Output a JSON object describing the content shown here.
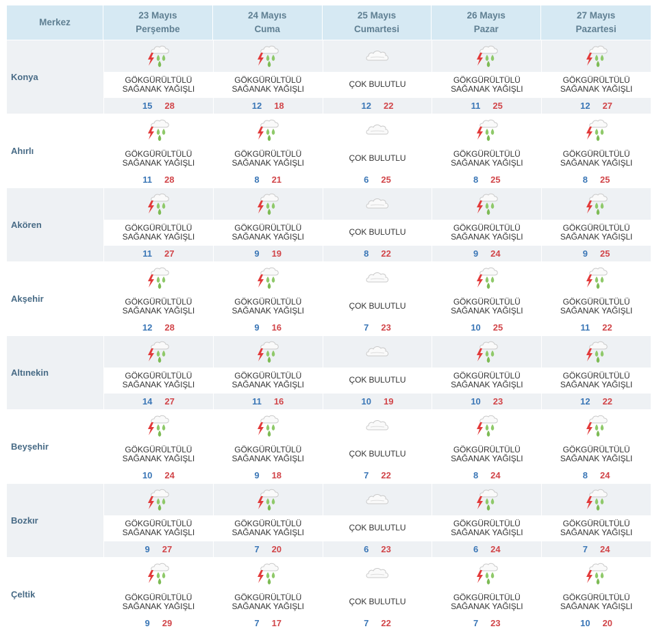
{
  "header": {
    "label": "Merkez"
  },
  "days": [
    {
      "date": "23 Mayıs",
      "weekday": "Perşembe"
    },
    {
      "date": "24 Mayıs",
      "weekday": "Cuma"
    },
    {
      "date": "25 Mayıs",
      "weekday": "Cumartesi"
    },
    {
      "date": "26 Mayıs",
      "weekday": "Pazar"
    },
    {
      "date": "27 Mayıs",
      "weekday": "Pazartesi"
    }
  ],
  "colors": {
    "header_bg": "#d6e9f3",
    "row_shade": "#eef1f4",
    "min_temp": "#3a76b6",
    "max_temp": "#d14549"
  },
  "rows": [
    {
      "name": "Konya",
      "days": [
        {
          "icon": "thunderstorm-icon",
          "line1": "GÖKGÜRÜLTÜLÜ",
          "line2": "SAĞANAK YAĞIŞLI",
          "min": "15",
          "max": "28"
        },
        {
          "icon": "thunderstorm-icon",
          "line1": "GÖKGÜRÜLTÜLÜ",
          "line2": "SAĞANAK YAĞIŞLI",
          "min": "12",
          "max": "18"
        },
        {
          "icon": "cloudy-icon",
          "line1": "ÇOK BULUTLU",
          "line2": "",
          "min": "12",
          "max": "22"
        },
        {
          "icon": "thunderstorm-icon",
          "line1": "GÖKGÜRÜLTÜLÜ",
          "line2": "SAĞANAK YAĞIŞLI",
          "min": "11",
          "max": "25"
        },
        {
          "icon": "thunderstorm-icon",
          "line1": "GÖKGÜRÜLTÜLÜ",
          "line2": "SAĞANAK YAĞIŞLI",
          "min": "12",
          "max": "27"
        }
      ]
    },
    {
      "name": "Ahırlı",
      "days": [
        {
          "icon": "thunderstorm-icon",
          "line1": "GÖKGÜRÜLTÜLÜ",
          "line2": "SAĞANAK YAĞIŞLI",
          "min": "11",
          "max": "28"
        },
        {
          "icon": "thunderstorm-icon",
          "line1": "GÖKGÜRÜLTÜLÜ",
          "line2": "SAĞANAK YAĞIŞLI",
          "min": "8",
          "max": "21"
        },
        {
          "icon": "cloudy-icon",
          "line1": "ÇOK BULUTLU",
          "line2": "",
          "min": "6",
          "max": "25"
        },
        {
          "icon": "thunderstorm-icon",
          "line1": "GÖKGÜRÜLTÜLÜ",
          "line2": "SAĞANAK YAĞIŞLI",
          "min": "8",
          "max": "25"
        },
        {
          "icon": "thunderstorm-icon",
          "line1": "GÖKGÜRÜLTÜLÜ",
          "line2": "SAĞANAK YAĞIŞLI",
          "min": "8",
          "max": "25"
        }
      ]
    },
    {
      "name": "Akören",
      "days": [
        {
          "icon": "thunderstorm-icon",
          "line1": "GÖKGÜRÜLTÜLÜ",
          "line2": "SAĞANAK YAĞIŞLI",
          "min": "11",
          "max": "27"
        },
        {
          "icon": "thunderstorm-icon",
          "line1": "GÖKGÜRÜLTÜLÜ",
          "line2": "SAĞANAK YAĞIŞLI",
          "min": "9",
          "max": "19"
        },
        {
          "icon": "cloudy-icon",
          "line1": "ÇOK BULUTLU",
          "line2": "",
          "min": "8",
          "max": "22"
        },
        {
          "icon": "thunderstorm-icon",
          "line1": "GÖKGÜRÜLTÜLÜ",
          "line2": "SAĞANAK YAĞIŞLI",
          "min": "9",
          "max": "24"
        },
        {
          "icon": "thunderstorm-icon",
          "line1": "GÖKGÜRÜLTÜLÜ",
          "line2": "SAĞANAK YAĞIŞLI",
          "min": "9",
          "max": "25"
        }
      ]
    },
    {
      "name": "Akşehir",
      "days": [
        {
          "icon": "thunderstorm-icon",
          "line1": "GÖKGÜRÜLTÜLÜ",
          "line2": "SAĞANAK YAĞIŞLI",
          "min": "12",
          "max": "28"
        },
        {
          "icon": "thunderstorm-icon",
          "line1": "GÖKGÜRÜLTÜLÜ",
          "line2": "SAĞANAK YAĞIŞLI",
          "min": "9",
          "max": "16"
        },
        {
          "icon": "cloudy-icon",
          "line1": "ÇOK BULUTLU",
          "line2": "",
          "min": "7",
          "max": "23"
        },
        {
          "icon": "thunderstorm-icon",
          "line1": "GÖKGÜRÜLTÜLÜ",
          "line2": "SAĞANAK YAĞIŞLI",
          "min": "10",
          "max": "25"
        },
        {
          "icon": "thunderstorm-icon",
          "line1": "GÖKGÜRÜLTÜLÜ",
          "line2": "SAĞANAK YAĞIŞLI",
          "min": "11",
          "max": "22"
        }
      ]
    },
    {
      "name": "Altınekin",
      "days": [
        {
          "icon": "thunderstorm-icon",
          "line1": "GÖKGÜRÜLTÜLÜ",
          "line2": "SAĞANAK YAĞIŞLI",
          "min": "14",
          "max": "27"
        },
        {
          "icon": "thunderstorm-icon",
          "line1": "GÖKGÜRÜLTÜLÜ",
          "line2": "SAĞANAK YAĞIŞLI",
          "min": "11",
          "max": "16"
        },
        {
          "icon": "cloudy-icon",
          "line1": "ÇOK BULUTLU",
          "line2": "",
          "min": "10",
          "max": "19"
        },
        {
          "icon": "thunderstorm-icon",
          "line1": "GÖKGÜRÜLTÜLÜ",
          "line2": "SAĞANAK YAĞIŞLI",
          "min": "10",
          "max": "23"
        },
        {
          "icon": "thunderstorm-icon",
          "line1": "GÖKGÜRÜLTÜLÜ",
          "line2": "SAĞANAK YAĞIŞLI",
          "min": "12",
          "max": "22"
        }
      ]
    },
    {
      "name": "Beyşehir",
      "days": [
        {
          "icon": "thunderstorm-icon",
          "line1": "GÖKGÜRÜLTÜLÜ",
          "line2": "SAĞANAK YAĞIŞLI",
          "min": "10",
          "max": "24"
        },
        {
          "icon": "thunderstorm-icon",
          "line1": "GÖKGÜRÜLTÜLÜ",
          "line2": "SAĞANAK YAĞIŞLI",
          "min": "9",
          "max": "18"
        },
        {
          "icon": "cloudy-icon",
          "line1": "ÇOK BULUTLU",
          "line2": "",
          "min": "7",
          "max": "22"
        },
        {
          "icon": "thunderstorm-icon",
          "line1": "GÖKGÜRÜLTÜLÜ",
          "line2": "SAĞANAK YAĞIŞLI",
          "min": "8",
          "max": "24"
        },
        {
          "icon": "thunderstorm-icon",
          "line1": "GÖKGÜRÜLTÜLÜ",
          "line2": "SAĞANAK YAĞIŞLI",
          "min": "8",
          "max": "24"
        }
      ]
    },
    {
      "name": "Bozkır",
      "days": [
        {
          "icon": "thunderstorm-icon",
          "line1": "GÖKGÜRÜLTÜLÜ",
          "line2": "SAĞANAK YAĞIŞLI",
          "min": "9",
          "max": "27"
        },
        {
          "icon": "thunderstorm-icon",
          "line1": "GÖKGÜRÜLTÜLÜ",
          "line2": "SAĞANAK YAĞIŞLI",
          "min": "7",
          "max": "20"
        },
        {
          "icon": "cloudy-icon",
          "line1": "ÇOK BULUTLU",
          "line2": "",
          "min": "6",
          "max": "23"
        },
        {
          "icon": "thunderstorm-icon",
          "line1": "GÖKGÜRÜLTÜLÜ",
          "line2": "SAĞANAK YAĞIŞLI",
          "min": "6",
          "max": "24"
        },
        {
          "icon": "thunderstorm-icon",
          "line1": "GÖKGÜRÜLTÜLÜ",
          "line2": "SAĞANAK YAĞIŞLI",
          "min": "7",
          "max": "24"
        }
      ]
    },
    {
      "name": "Çeltik",
      "days": [
        {
          "icon": "thunderstorm-icon",
          "line1": "GÖKGÜRÜLTÜLÜ",
          "line2": "SAĞANAK YAĞIŞLI",
          "min": "9",
          "max": "29"
        },
        {
          "icon": "thunderstorm-icon",
          "line1": "GÖKGÜRÜLTÜLÜ",
          "line2": "SAĞANAK YAĞIŞLI",
          "min": "7",
          "max": "17"
        },
        {
          "icon": "cloudy-icon",
          "line1": "ÇOK BULUTLU",
          "line2": "",
          "min": "7",
          "max": "22"
        },
        {
          "icon": "thunderstorm-icon",
          "line1": "GÖKGÜRÜLTÜLÜ",
          "line2": "SAĞANAK YAĞIŞLI",
          "min": "7",
          "max": "23"
        },
        {
          "icon": "thunderstorm-icon",
          "line1": "GÖKGÜRÜLTÜLÜ",
          "line2": "SAĞANAK YAĞIŞLI",
          "min": "10",
          "max": "20"
        }
      ]
    }
  ]
}
